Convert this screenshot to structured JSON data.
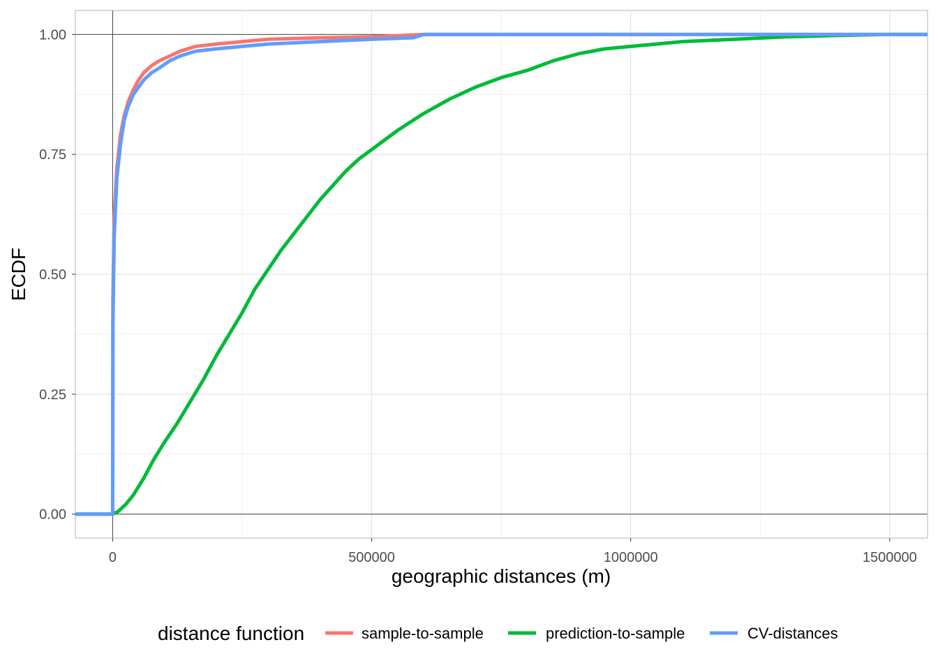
{
  "chart_data": {
    "type": "line",
    "title": "",
    "xlabel": "geographic distances (m)",
    "ylabel": "ECDF",
    "xlim": [
      -72000,
      1573000
    ],
    "ylim": [
      -0.05,
      1.05
    ],
    "x_ticks": [
      0,
      500000,
      1000000,
      1500000
    ],
    "x_tick_labels": [
      "0",
      "500000",
      "1000000",
      "1500000"
    ],
    "y_ticks": [
      0,
      0.25,
      0.5,
      0.75,
      1
    ],
    "y_tick_labels": [
      "0.00",
      "0.25",
      "0.50",
      "0.75",
      "1.00"
    ],
    "grid": true,
    "legend": {
      "title": "distance function",
      "position": "bottom"
    },
    "series": [
      {
        "name": "sample-to-sample",
        "color": "#F8766D",
        "points": [
          [
            -72000,
            0
          ],
          [
            0,
            0
          ],
          [
            500,
            0.45
          ],
          [
            3000,
            0.62
          ],
          [
            8000,
            0.72
          ],
          [
            15000,
            0.79
          ],
          [
            22000,
            0.83
          ],
          [
            30000,
            0.86
          ],
          [
            40000,
            0.885
          ],
          [
            50000,
            0.905
          ],
          [
            60000,
            0.92
          ],
          [
            75000,
            0.935
          ],
          [
            90000,
            0.945
          ],
          [
            110000,
            0.955
          ],
          [
            130000,
            0.965
          ],
          [
            160000,
            0.975
          ],
          [
            200000,
            0.98
          ],
          [
            250000,
            0.985
          ],
          [
            300000,
            0.99
          ],
          [
            400000,
            0.993
          ],
          [
            500000,
            0.995
          ],
          [
            600000,
            1.0
          ],
          [
            1573000,
            1.0
          ]
        ]
      },
      {
        "name": "prediction-to-sample",
        "color": "#00BA38",
        "points": [
          [
            -72000,
            0
          ],
          [
            0,
            0
          ],
          [
            10000,
            0.005
          ],
          [
            25000,
            0.02
          ],
          [
            40000,
            0.04
          ],
          [
            60000,
            0.075
          ],
          [
            80000,
            0.115
          ],
          [
            100000,
            0.15
          ],
          [
            125000,
            0.19
          ],
          [
            150000,
            0.235
          ],
          [
            175000,
            0.28
          ],
          [
            200000,
            0.33
          ],
          [
            225000,
            0.375
          ],
          [
            250000,
            0.42
          ],
          [
            275000,
            0.47
          ],
          [
            300000,
            0.51
          ],
          [
            325000,
            0.55
          ],
          [
            350000,
            0.585
          ],
          [
            375000,
            0.62
          ],
          [
            400000,
            0.655
          ],
          [
            425000,
            0.685
          ],
          [
            450000,
            0.715
          ],
          [
            475000,
            0.74
          ],
          [
            500000,
            0.76
          ],
          [
            550000,
            0.8
          ],
          [
            600000,
            0.835
          ],
          [
            650000,
            0.865
          ],
          [
            700000,
            0.89
          ],
          [
            750000,
            0.91
          ],
          [
            800000,
            0.925
          ],
          [
            850000,
            0.945
          ],
          [
            900000,
            0.96
          ],
          [
            950000,
            0.97
          ],
          [
            1000000,
            0.975
          ],
          [
            1100000,
            0.985
          ],
          [
            1200000,
            0.99
          ],
          [
            1300000,
            0.995
          ],
          [
            1400000,
            0.998
          ],
          [
            1500000,
            1.0
          ],
          [
            1573000,
            1.0
          ]
        ]
      },
      {
        "name": "CV-distances",
        "color": "#619CFF",
        "points": [
          [
            -72000,
            0
          ],
          [
            0,
            0
          ],
          [
            500,
            0.4
          ],
          [
            3000,
            0.58
          ],
          [
            8000,
            0.7
          ],
          [
            15000,
            0.77
          ],
          [
            22000,
            0.82
          ],
          [
            30000,
            0.85
          ],
          [
            40000,
            0.875
          ],
          [
            50000,
            0.89
          ],
          [
            60000,
            0.905
          ],
          [
            75000,
            0.92
          ],
          [
            90000,
            0.93
          ],
          [
            110000,
            0.945
          ],
          [
            130000,
            0.955
          ],
          [
            160000,
            0.965
          ],
          [
            200000,
            0.97
          ],
          [
            250000,
            0.975
          ],
          [
            300000,
            0.98
          ],
          [
            400000,
            0.985
          ],
          [
            500000,
            0.99
          ],
          [
            580000,
            0.993
          ],
          [
            600000,
            1.0
          ],
          [
            1573000,
            1.0
          ]
        ]
      }
    ]
  }
}
